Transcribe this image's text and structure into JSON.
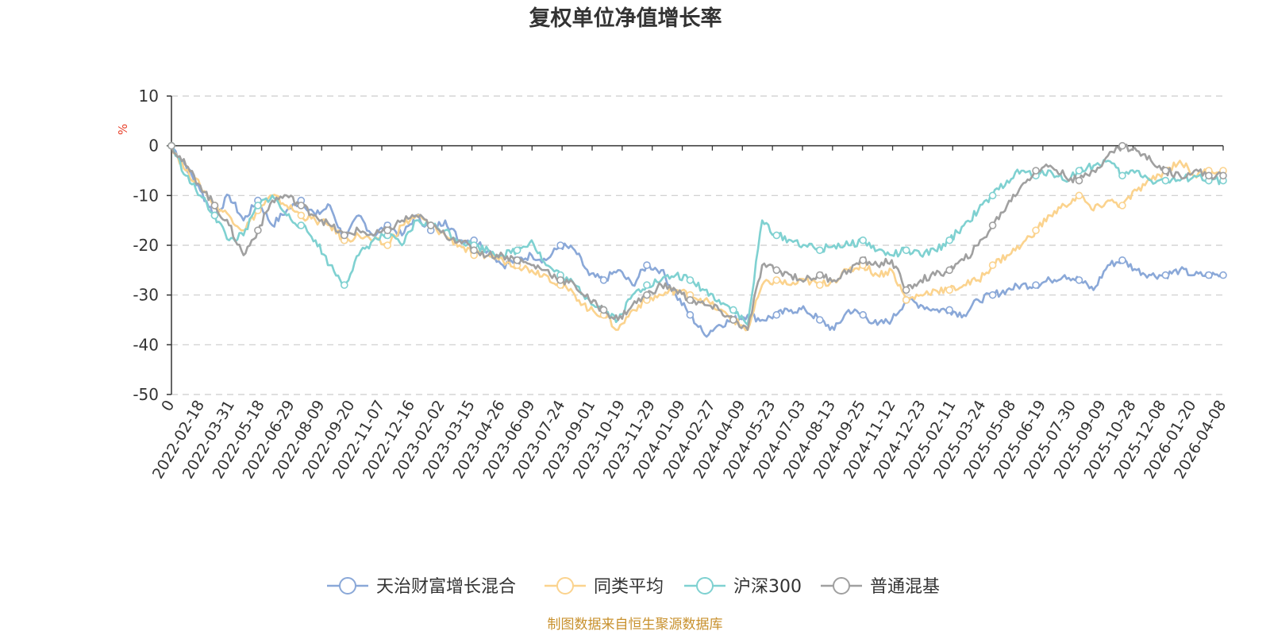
{
  "chart_data": {
    "type": "line",
    "title": "复权单位净值增长率",
    "ylabel": "%",
    "ylim": [
      -50,
      10
    ],
    "yticks": [
      10,
      0,
      -10,
      -20,
      -30,
      -40,
      -50
    ],
    "xtick_labels": [
      "0",
      "2022-02-18",
      "2022-03-31",
      "2022-05-18",
      "2022-06-29",
      "2022-08-09",
      "2022-09-20",
      "2022-11-07",
      "2022-12-16",
      "2023-02-02",
      "2023-03-15",
      "2023-04-26",
      "2023-06-09",
      "2023-07-24",
      "2023-09-01",
      "2023-10-19",
      "2023-11-29",
      "2024-01-09",
      "2024-02-27",
      "2024-04-09",
      "2024-05-23",
      "2024-07-03",
      "2024-08-13",
      "2024-09-25",
      "2024-11-12",
      "2024-12-23",
      "2025-02-11",
      "2025-03-24",
      "2025-05-08",
      "2025-06-19",
      "2025-07-30",
      "2025-09-09",
      "2025-10-28",
      "2025-12-08",
      "2026-01-20",
      "2026-04-08"
    ],
    "grid": "horizontal-dashed",
    "legend_position": "bottom",
    "series": [
      {
        "name": "天治财富增长混合",
        "color": "#8aa8d8",
        "values": [
          0,
          -4,
          -9,
          -14,
          -10,
          -15,
          -11,
          -16,
          -13,
          -11,
          -14,
          -12,
          -19,
          -14,
          -18,
          -16,
          -18,
          -14,
          -17,
          -15,
          -19,
          -19,
          -21,
          -24,
          -23,
          -22,
          -23,
          -20,
          -21,
          -26,
          -27,
          -25,
          -28,
          -24,
          -25,
          -30,
          -34,
          -38,
          -36,
          -35,
          -34,
          -35,
          -34,
          -33,
          -33,
          -35,
          -37,
          -33,
          -34,
          -36,
          -35,
          -31,
          -32,
          -33,
          -33,
          -34,
          -31,
          -30,
          -29,
          -28,
          -28,
          -27,
          -26,
          -27,
          -29,
          -24,
          -23,
          -25,
          -26,
          -26,
          -25,
          -26,
          -26,
          -26
        ]
      },
      {
        "name": "同类平均",
        "color": "#fbd38e",
        "values": [
          0,
          -5,
          -8,
          -12,
          -14,
          -17,
          -13,
          -10,
          -12,
          -14,
          -15,
          -16,
          -19,
          -18,
          -19,
          -20,
          -16,
          -14,
          -16,
          -18,
          -20,
          -22,
          -22,
          -23,
          -24,
          -25,
          -26,
          -28,
          -30,
          -33,
          -34,
          -37,
          -33,
          -31,
          -30,
          -29,
          -30,
          -31,
          -33,
          -35,
          -37,
          -28,
          -27,
          -28,
          -27,
          -28,
          -27,
          -25,
          -24,
          -26,
          -25,
          -31,
          -30,
          -29,
          -29,
          -28,
          -27,
          -24,
          -22,
          -20,
          -17,
          -14,
          -12,
          -10,
          -13,
          -11,
          -12,
          -9,
          -7,
          -5,
          -3,
          -6,
          -5,
          -5
        ]
      },
      {
        "name": "沪深300",
        "color": "#7fd1d1",
        "values": [
          0,
          -6,
          -10,
          -14,
          -19,
          -18,
          -12,
          -10,
          -14,
          -16,
          -19,
          -24,
          -28,
          -22,
          -19,
          -18,
          -20,
          -15,
          -16,
          -17,
          -19,
          -20,
          -21,
          -22,
          -21,
          -19,
          -24,
          -26,
          -28,
          -31,
          -33,
          -35,
          -30,
          -28,
          -27,
          -26,
          -27,
          -29,
          -31,
          -33,
          -36,
          -15,
          -18,
          -19,
          -20,
          -21,
          -20,
          -20,
          -19,
          -21,
          -22,
          -21,
          -22,
          -21,
          -19,
          -16,
          -13,
          -10,
          -7,
          -5,
          -6,
          -5,
          -7,
          -5,
          -4,
          -3,
          -6,
          -5,
          -7,
          -7,
          -7,
          -6,
          -7,
          -7
        ]
      },
      {
        "name": "普通混基",
        "color": "#a0a0a0",
        "values": [
          0,
          -4,
          -8,
          -12,
          -16,
          -22,
          -17,
          -11,
          -10,
          -12,
          -14,
          -16,
          -18,
          -17,
          -18,
          -17,
          -15,
          -14,
          -16,
          -18,
          -19,
          -21,
          -22,
          -22,
          -23,
          -24,
          -25,
          -27,
          -28,
          -31,
          -33,
          -35,
          -32,
          -30,
          -28,
          -29,
          -31,
          -32,
          -33,
          -35,
          -37,
          -24,
          -25,
          -26,
          -27,
          -26,
          -27,
          -25,
          -23,
          -24,
          -23,
          -29,
          -27,
          -26,
          -25,
          -23,
          -20,
          -16,
          -12,
          -8,
          -5,
          -4,
          -6,
          -7,
          -5,
          -2,
          0,
          -1,
          -3,
          -5,
          -6,
          -5,
          -6,
          -6
        ]
      }
    ]
  },
  "footer": {
    "source": "制图数据来自恒生聚源数据库"
  }
}
